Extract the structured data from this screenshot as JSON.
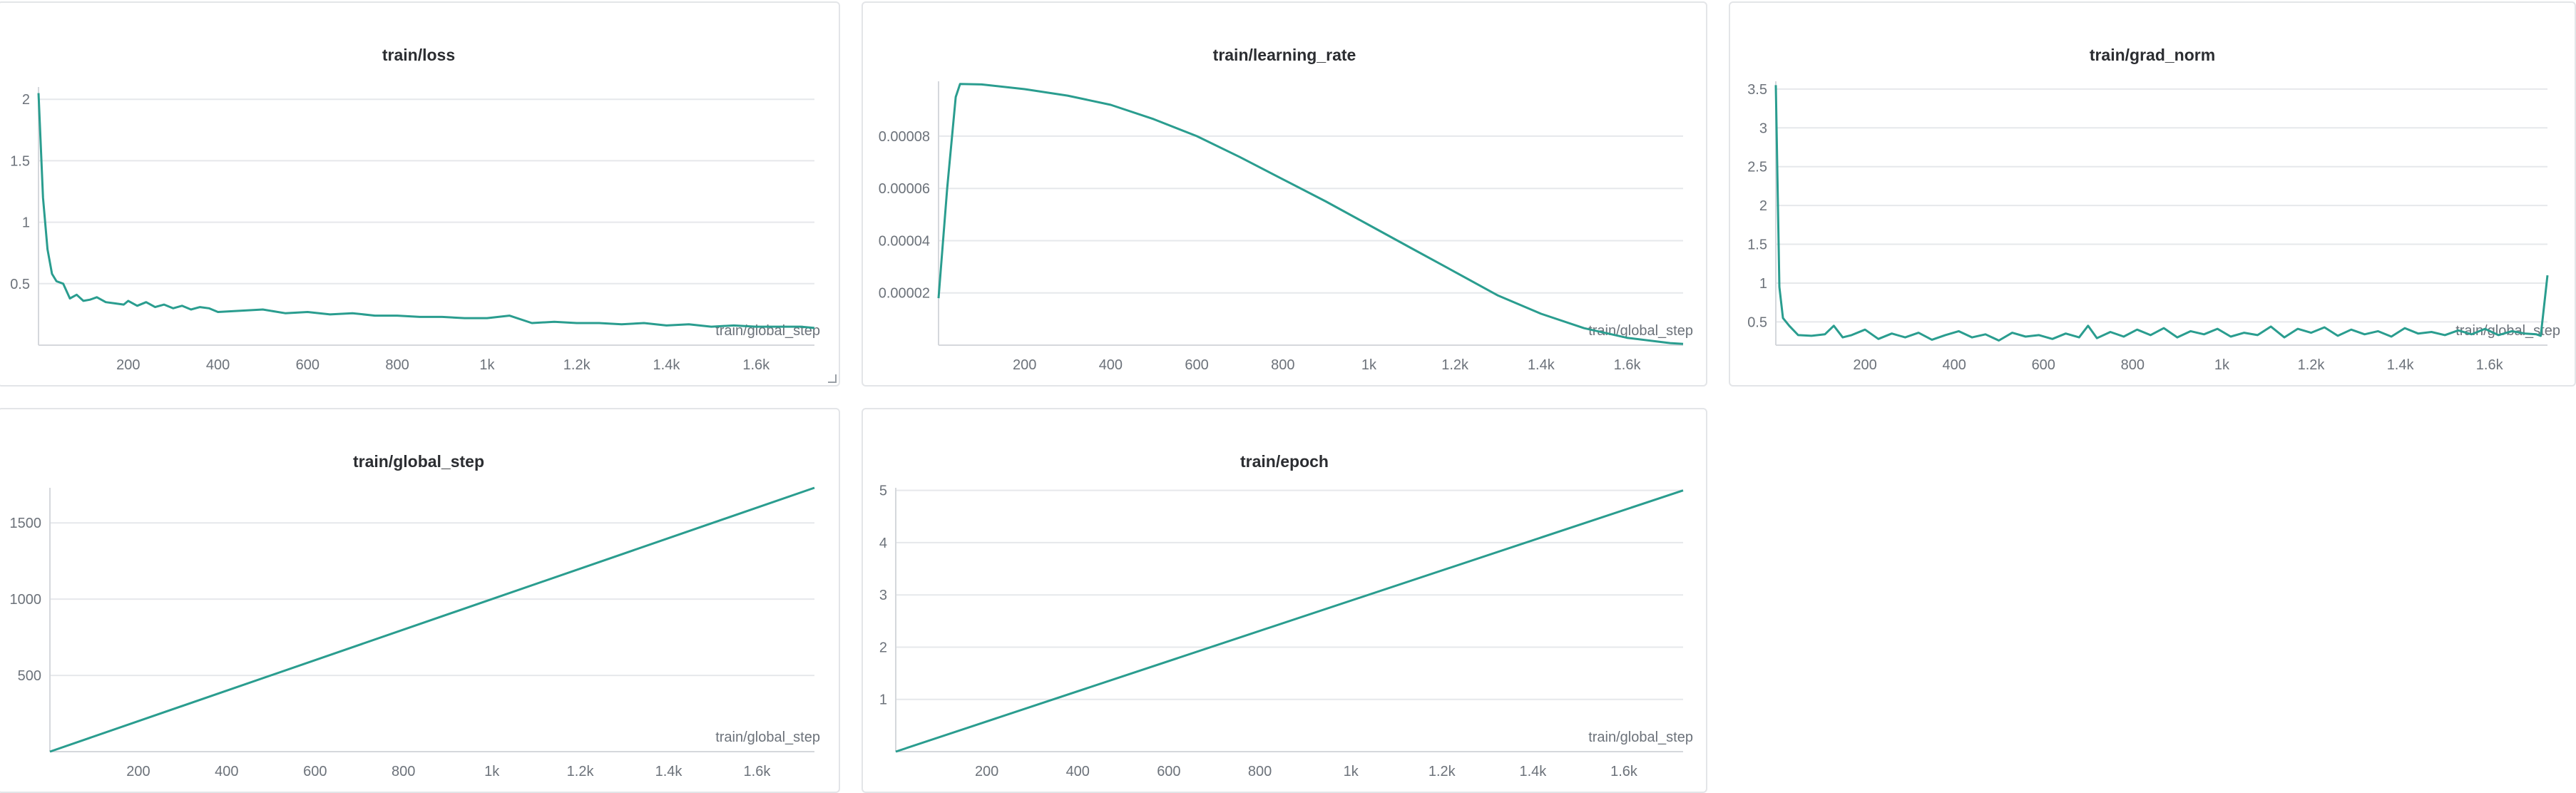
{
  "colors": {
    "series": "#2a9d8f",
    "grid": "#e6e8eb",
    "border": "#e3e5e8"
  },
  "chart_data": [
    {
      "id": "loss",
      "type": "line",
      "title": "train/loss",
      "xlabel": "train/global_step",
      "xlim": [
        0,
        1730
      ],
      "ylim": [
        0,
        2.1
      ],
      "xticks": [
        200,
        400,
        600,
        800,
        1000,
        1200,
        1400,
        1600
      ],
      "xtick_labels": [
        "200",
        "400",
        "600",
        "800",
        "1k",
        "1.2k",
        "1.4k",
        "1.6k"
      ],
      "yticks": [
        0.5,
        1,
        1.5,
        2
      ],
      "ytick_labels": [
        "0.5",
        "1",
        "1.5",
        "2"
      ],
      "series": [
        {
          "x": [
            0,
            10,
            20,
            30,
            40,
            55,
            70,
            85,
            100,
            115,
            130,
            150,
            170,
            190,
            200,
            220,
            240,
            260,
            280,
            300,
            320,
            340,
            360,
            380,
            400,
            450,
            500,
            550,
            600,
            650,
            700,
            750,
            800,
            850,
            900,
            950,
            1000,
            1050,
            1100,
            1150,
            1200,
            1250,
            1300,
            1350,
            1400,
            1450,
            1500,
            1550,
            1600,
            1650,
            1700,
            1730
          ],
          "y": [
            2.05,
            1.2,
            0.78,
            0.58,
            0.52,
            0.5,
            0.38,
            0.41,
            0.36,
            0.37,
            0.39,
            0.35,
            0.34,
            0.33,
            0.36,
            0.32,
            0.35,
            0.31,
            0.33,
            0.3,
            0.32,
            0.29,
            0.31,
            0.3,
            0.27,
            0.28,
            0.29,
            0.26,
            0.27,
            0.25,
            0.26,
            0.24,
            0.24,
            0.23,
            0.23,
            0.22,
            0.22,
            0.24,
            0.18,
            0.19,
            0.18,
            0.18,
            0.17,
            0.18,
            0.16,
            0.17,
            0.15,
            0.16,
            0.15,
            0.15,
            0.15,
            0.14
          ]
        }
      ]
    },
    {
      "id": "lr",
      "type": "line",
      "title": "train/learning_rate",
      "xlabel": "train/global_step",
      "xlim": [
        0,
        1730
      ],
      "ylim": [
        0,
        0.000101
      ],
      "xticks": [
        200,
        400,
        600,
        800,
        1000,
        1200,
        1400,
        1600
      ],
      "xtick_labels": [
        "200",
        "400",
        "600",
        "800",
        "1k",
        "1.2k",
        "1.4k",
        "1.6k"
      ],
      "yticks": [
        2e-05,
        4e-05,
        6e-05,
        8e-05
      ],
      "ytick_labels": [
        "0.00002",
        "0.00004",
        "0.00006",
        "0.00008"
      ],
      "series": [
        {
          "x": [
            0,
            20,
            40,
            50,
            100,
            200,
            300,
            400,
            500,
            600,
            700,
            800,
            900,
            1000,
            1100,
            1200,
            1300,
            1400,
            1500,
            1600,
            1700,
            1730
          ],
          "y": [
            1.8e-05,
            6e-05,
            9.5e-05,
            0.0001,
            9.98e-05,
            9.8e-05,
            9.55e-05,
            9.2e-05,
            8.65e-05,
            8e-05,
            7.2e-05,
            6.35e-05,
            5.5e-05,
            4.6e-05,
            3.7e-05,
            2.8e-05,
            1.9e-05,
            1.2e-05,
            6.5e-06,
            2.8e-06,
            8e-07,
            5e-07
          ]
        }
      ]
    },
    {
      "id": "grad",
      "type": "line",
      "title": "train/grad_norm",
      "xlabel": "train/global_step",
      "xlim": [
        0,
        1730
      ],
      "ylim": [
        0.2,
        3.6
      ],
      "xticks": [
        200,
        400,
        600,
        800,
        1000,
        1200,
        1400,
        1600
      ],
      "xtick_labels": [
        "200",
        "400",
        "600",
        "800",
        "1k",
        "1.2k",
        "1.4k",
        "1.6k"
      ],
      "yticks": [
        0.5,
        1,
        1.5,
        2,
        2.5,
        3,
        3.5
      ],
      "ytick_labels": [
        "0.5",
        "1",
        "1.5",
        "2",
        "2.5",
        "3",
        "3.5"
      ],
      "series": [
        {
          "x": [
            0,
            8,
            16,
            30,
            50,
            80,
            110,
            130,
            150,
            170,
            200,
            230,
            260,
            290,
            320,
            350,
            380,
            410,
            440,
            470,
            500,
            530,
            560,
            590,
            620,
            650,
            680,
            700,
            720,
            750,
            780,
            810,
            840,
            870,
            900,
            930,
            960,
            990,
            1020,
            1050,
            1080,
            1110,
            1140,
            1170,
            1200,
            1230,
            1260,
            1290,
            1320,
            1350,
            1380,
            1410,
            1440,
            1470,
            1500,
            1530,
            1560,
            1590,
            1620,
            1650,
            1680,
            1705,
            1715,
            1730
          ],
          "y": [
            3.55,
            0.95,
            0.55,
            0.45,
            0.33,
            0.32,
            0.34,
            0.45,
            0.3,
            0.33,
            0.4,
            0.28,
            0.35,
            0.3,
            0.36,
            0.27,
            0.33,
            0.38,
            0.3,
            0.34,
            0.26,
            0.36,
            0.31,
            0.33,
            0.28,
            0.35,
            0.3,
            0.45,
            0.29,
            0.37,
            0.31,
            0.4,
            0.33,
            0.42,
            0.3,
            0.38,
            0.34,
            0.41,
            0.31,
            0.36,
            0.33,
            0.44,
            0.3,
            0.41,
            0.36,
            0.43,
            0.32,
            0.4,
            0.34,
            0.38,
            0.31,
            0.42,
            0.35,
            0.37,
            0.33,
            0.39,
            0.34,
            0.41,
            0.33,
            0.38,
            0.35,
            0.34,
            0.32,
            1.1
          ]
        }
      ]
    },
    {
      "id": "step",
      "type": "line",
      "title": "train/global_step",
      "xlabel": "train/global_step",
      "xlim": [
        0,
        1730
      ],
      "ylim": [
        0,
        1730
      ],
      "xticks": [
        200,
        400,
        600,
        800,
        1000,
        1200,
        1400,
        1600
      ],
      "xtick_labels": [
        "200",
        "400",
        "600",
        "800",
        "1k",
        "1.2k",
        "1.4k",
        "1.6k"
      ],
      "yticks": [
        500,
        1000,
        1500
      ],
      "ytick_labels": [
        "500",
        "1000",
        "1500"
      ],
      "series": [
        {
          "x": [
            0,
            1730
          ],
          "y": [
            0,
            1730
          ]
        }
      ]
    },
    {
      "id": "epoch",
      "type": "line",
      "title": "train/epoch",
      "xlabel": "train/global_step",
      "xlim": [
        0,
        1730
      ],
      "ylim": [
        0,
        5.05
      ],
      "xticks": [
        200,
        400,
        600,
        800,
        1000,
        1200,
        1400,
        1600
      ],
      "xtick_labels": [
        "200",
        "400",
        "600",
        "800",
        "1k",
        "1.2k",
        "1.4k",
        "1.6k"
      ],
      "yticks": [
        1,
        2,
        3,
        4,
        5
      ],
      "ytick_labels": [
        "1",
        "2",
        "3",
        "4",
        "5"
      ],
      "series": [
        {
          "x": [
            0,
            1730
          ],
          "y": [
            0,
            5
          ]
        }
      ]
    }
  ]
}
